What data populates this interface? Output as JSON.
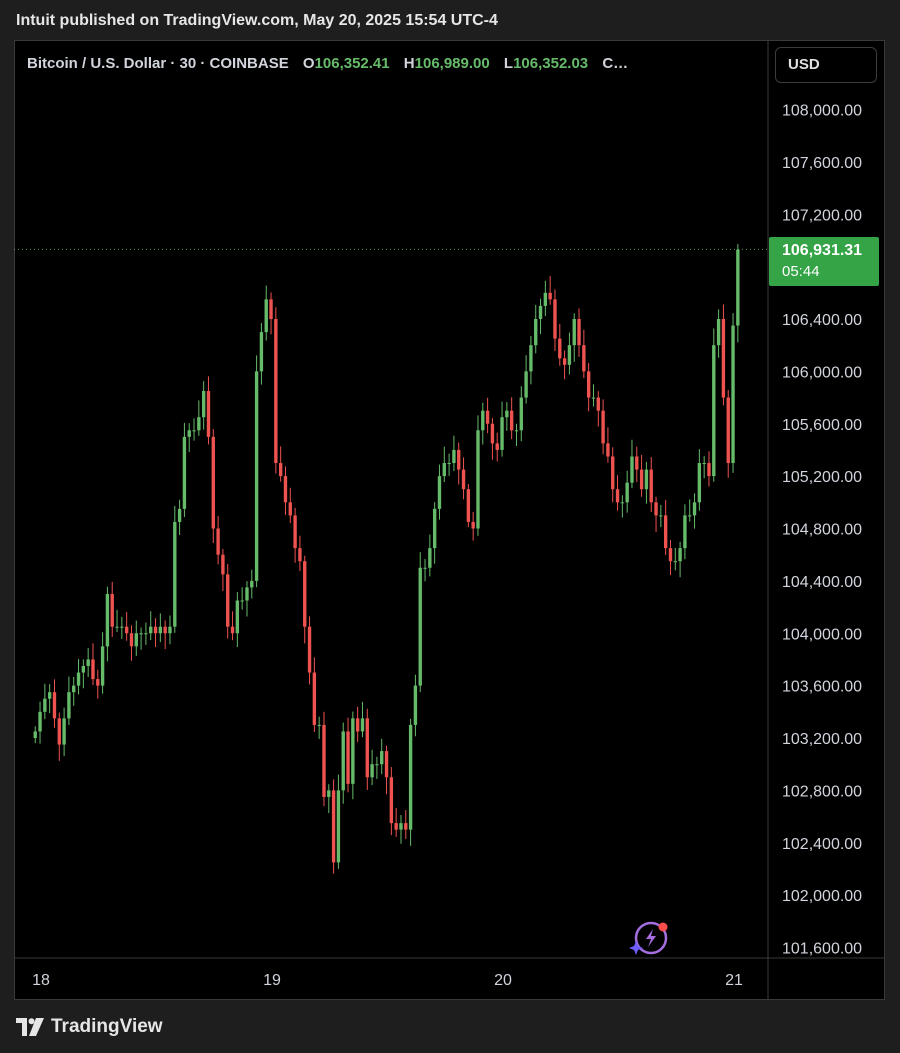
{
  "publish_line": "Intuit published on TradingView.com, May 20, 2025 15:54 UTC-4",
  "legend": {
    "symbol": "Bitcoin / U.S. Dollar · 30 · COINBASE",
    "o_key": "O",
    "o_val": "106,352.41",
    "h_key": "H",
    "h_val": "106,989.00",
    "l_key": "L",
    "l_val": "106,352.03",
    "c_key": "C…"
  },
  "currency_button": "USD",
  "last_price": {
    "value": "106,931.31",
    "countdown": "05:44"
  },
  "footer_brand": "TradingView",
  "colors": {
    "up": "#66bb6a",
    "down": "#ef5350",
    "background": "#000000",
    "last_tag": "#34a446"
  },
  "icons": {
    "brand": "tradingview-logo-icon",
    "assistant": "sparkle-icon"
  },
  "chart_data": {
    "type": "candlestick",
    "timeframe": "30",
    "ylim": [
      101500,
      108300
    ],
    "y_ticks": [
      "108,000.00",
      "107,600.00",
      "107,200.00",
      "106,400.00",
      "106,000.00",
      "105,600.00",
      "105,200.00",
      "104,800.00",
      "104,400.00",
      "104,000.00",
      "103,600.00",
      "103,200.00",
      "102,800.00",
      "102,400.00",
      "102,000.00",
      "101,600.00"
    ],
    "x_ticks": [
      {
        "label": "18",
        "day": 18
      },
      {
        "label": "19",
        "day": 19
      },
      {
        "label": "20",
        "day": 20
      },
      {
        "label": "21",
        "day": 21
      }
    ],
    "x_start_day": 17.975,
    "last_price_line": 106931.31,
    "closes": [
      103250,
      103400,
      103500,
      103550,
      103350,
      103150,
      103350,
      103550,
      103600,
      103700,
      103750,
      103800,
      103650,
      103600,
      103900,
      104300,
      104050,
      104050,
      104050,
      104000,
      103900,
      104000,
      104000,
      104000,
      104050,
      104000,
      104050,
      104000,
      104050,
      104850,
      104950,
      105500,
      105550,
      105550,
      105650,
      105850,
      105500,
      104800,
      104600,
      104450,
      104050,
      104000,
      104250,
      104250,
      104350,
      104400,
      106000,
      106300,
      106550,
      106400,
      105300,
      105200,
      105000,
      104900,
      104650,
      104550,
      104050,
      103700,
      103300,
      103300,
      102750,
      102800,
      102250,
      102800,
      103250,
      102850,
      103350,
      103250,
      103350,
      102900,
      103000,
      103000,
      103100,
      102900,
      102550,
      102500,
      102550,
      102500,
      103300,
      103600,
      104500,
      104500,
      104650,
      104950,
      105200,
      105300,
      105300,
      105400,
      105250,
      105100,
      104850,
      104800,
      105550,
      105700,
      105600,
      105450,
      105400,
      105650,
      105700,
      105550,
      105550,
      105800,
      106000,
      106200,
      106400,
      106500,
      106600,
      106550,
      106250,
      106100,
      106050,
      106200,
      106400,
      106200,
      106000,
      105800,
      105800,
      105700,
      105450,
      105350,
      105100,
      105000,
      105000,
      105150,
      105350,
      105250,
      105100,
      105250,
      105000,
      104900,
      104900,
      104650,
      104550,
      104550,
      104650,
      104900,
      104900,
      105000,
      105300,
      105300,
      105200,
      106200,
      106400,
      105800,
      105300,
      106350,
      106930
    ],
    "note_time_range": "May 18 – May 20, 2025"
  }
}
